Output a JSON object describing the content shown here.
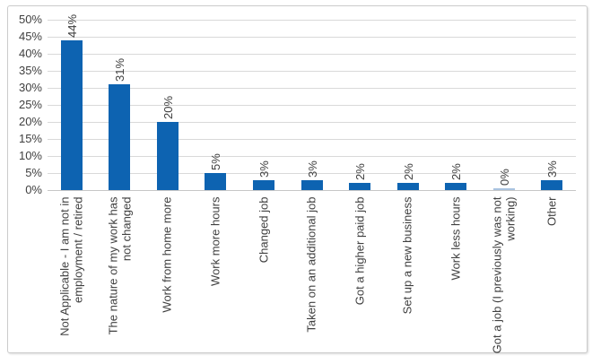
{
  "chart_data": {
    "type": "bar",
    "title": "",
    "xlabel": "",
    "ylabel": "",
    "categories": [
      "Not Applicable - I am not in employment / retired",
      "The nature of my work has not changed",
      "Work from home more",
      "Work more hours",
      "Changed job",
      "Taken on an additional job",
      "Got a higher paid job",
      "Set up a new business",
      "Work less hours",
      "Got a job (I previously was not working)",
      "Other"
    ],
    "values": [
      44,
      31,
      20,
      5,
      3,
      3,
      2,
      2,
      2,
      0,
      3
    ],
    "data_labels": [
      "44%",
      "31%",
      "20%",
      "5%",
      "3%",
      "3%",
      "2%",
      "2%",
      "2%",
      "0%",
      "3%"
    ],
    "ylim": [
      0,
      50
    ],
    "ytick_step": 5,
    "ytick_labels": [
      "0%",
      "5%",
      "10%",
      "15%",
      "20%",
      "25%",
      "30%",
      "35%",
      "40%",
      "45%",
      "50%"
    ],
    "grid": true,
    "legend": false,
    "colors": {
      "bar": "#0d63b1",
      "zero_bar": "#a9c3e0",
      "gridline": "#d9d9d9",
      "axis_line": "#c6c6c6",
      "text": "#404040",
      "frame_border": "#cccccc",
      "background": "#ffffff"
    }
  }
}
